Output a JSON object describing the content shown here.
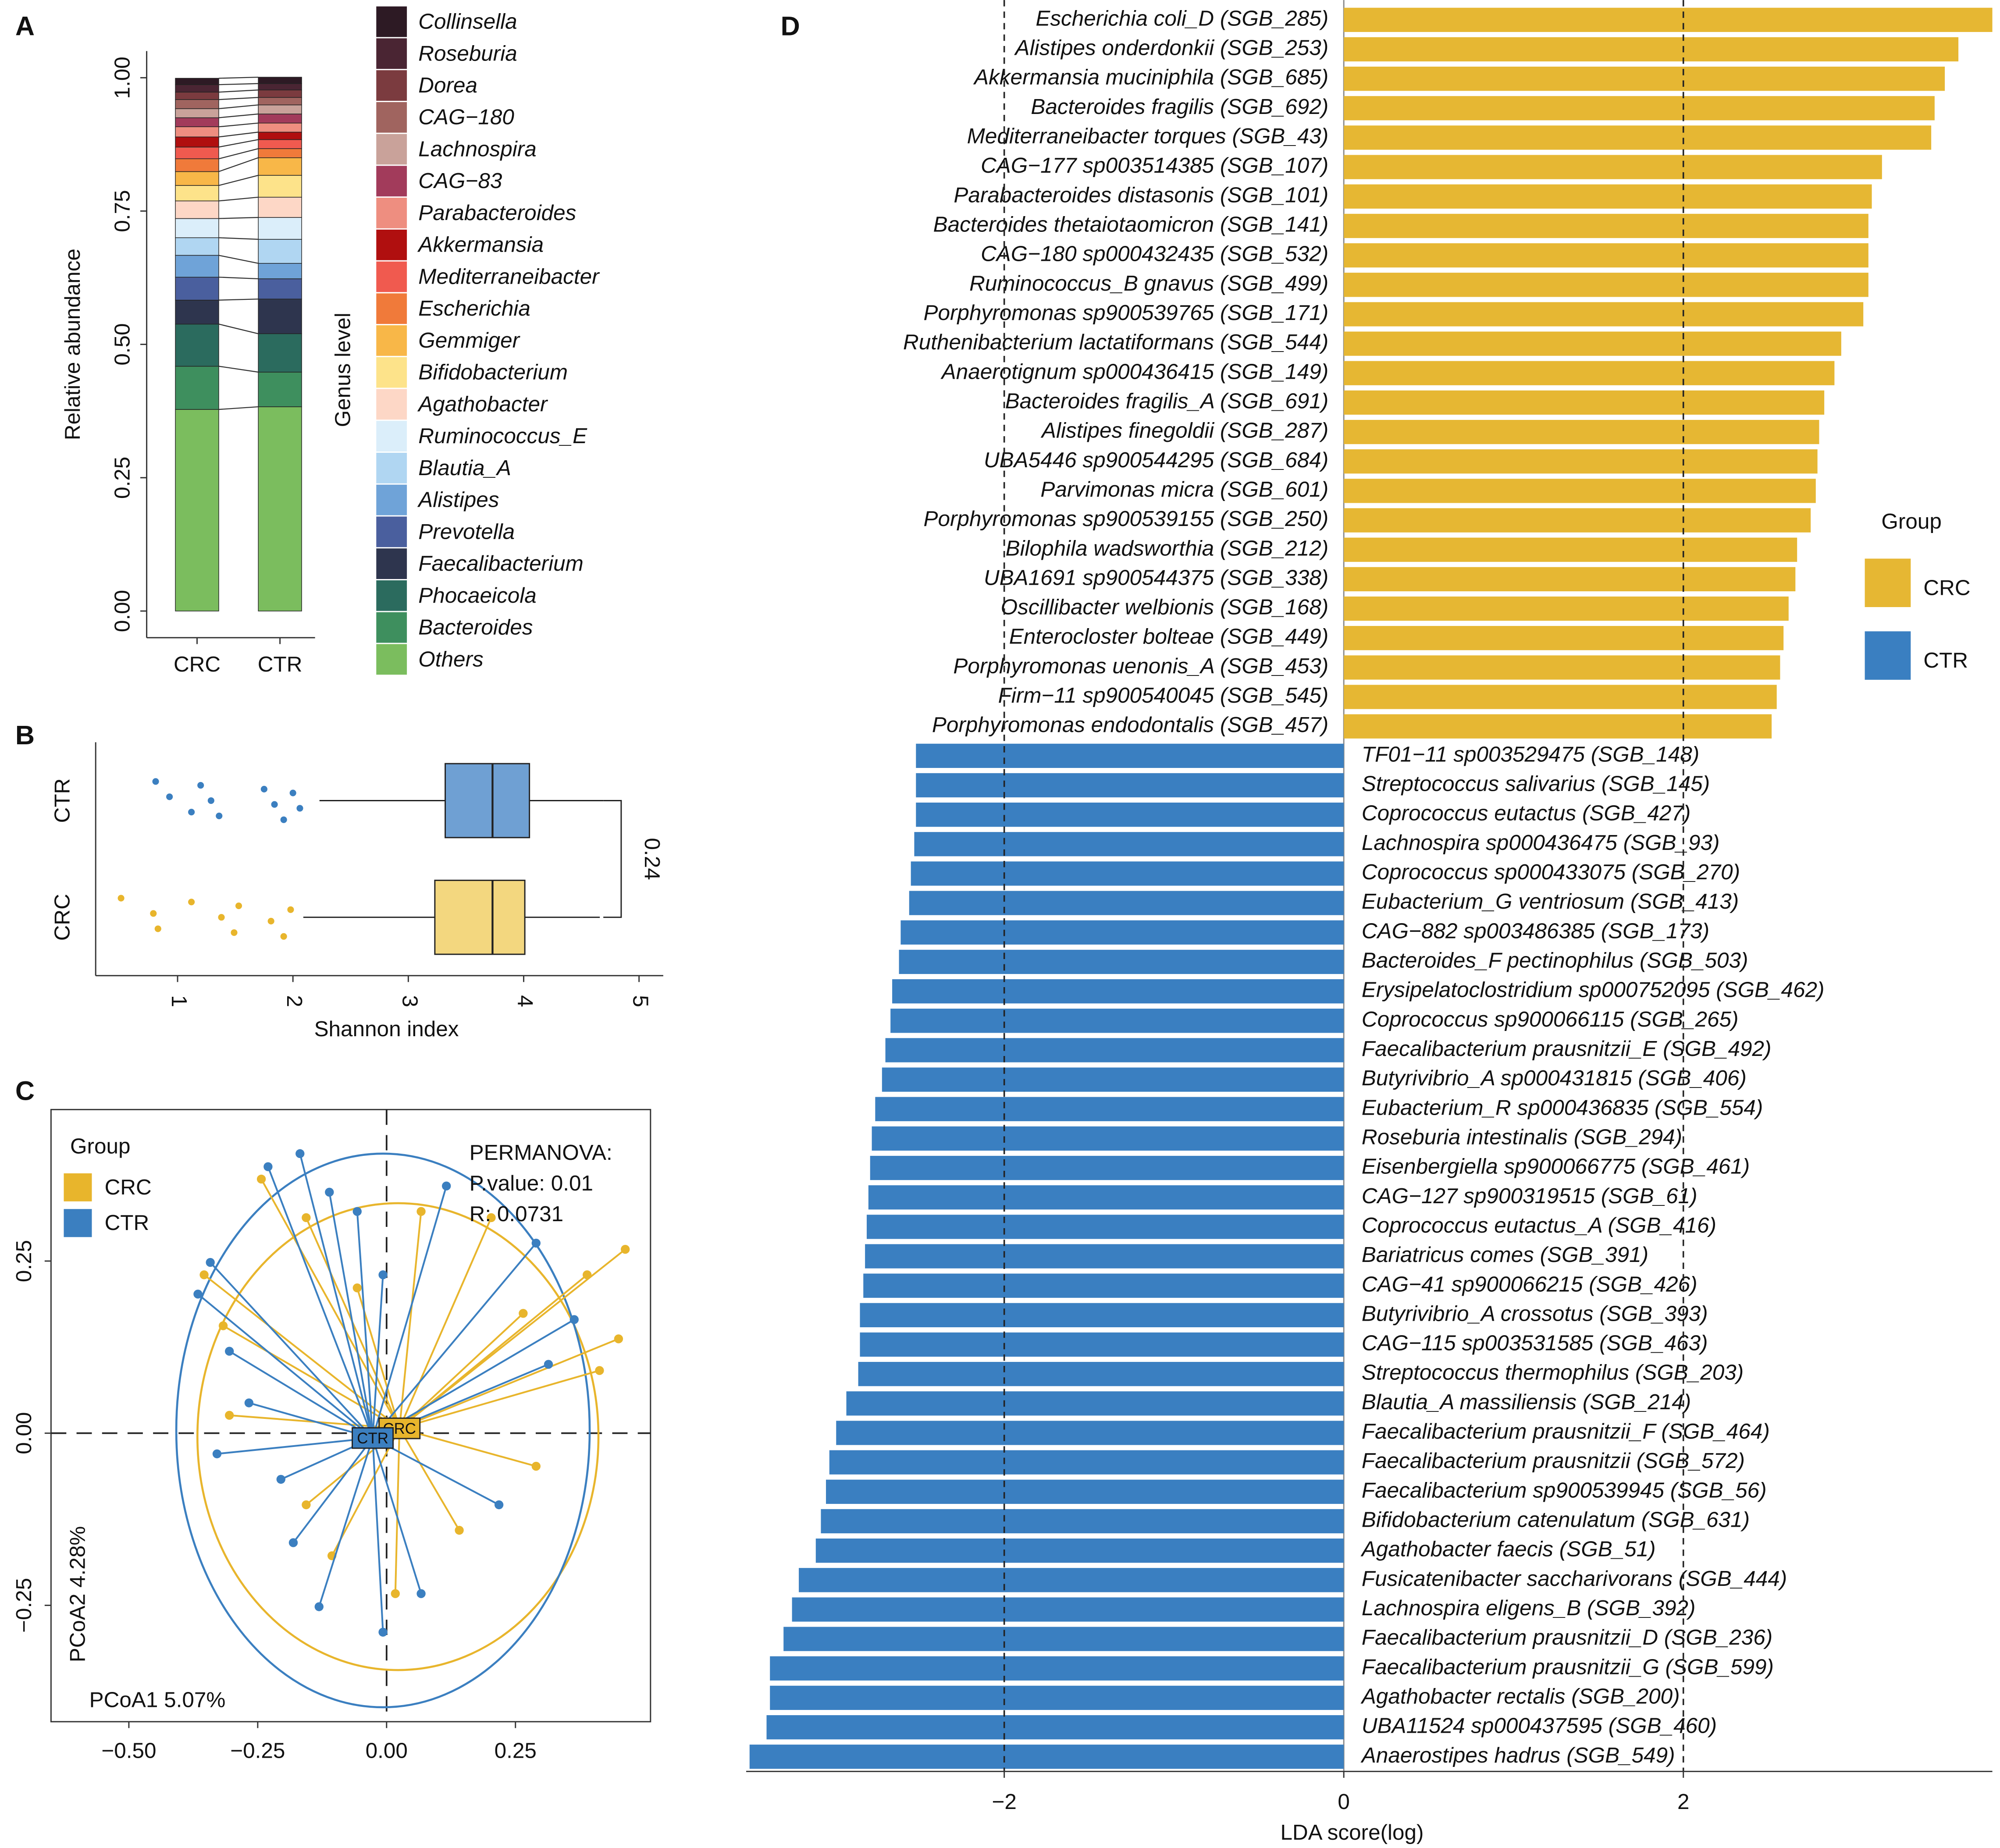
{
  "chart_data": [
    {
      "type": "bar",
      "panel": "A",
      "stacked": true,
      "ylabel": "Relative abundance",
      "legend_title": "Genus level",
      "categories": [
        "CRC",
        "CTR"
      ],
      "ylim": [
        -0.05,
        1.05
      ],
      "yticks": [
        {
          "value": 0,
          "label": "0.00"
        },
        {
          "value": 0.25,
          "label": "0.25"
        },
        {
          "value": 0.5,
          "label": "0.50"
        },
        {
          "value": 0.75,
          "label": "0.75"
        },
        {
          "value": 1,
          "label": "1.00"
        }
      ],
      "series": [
        {
          "name": "Collinsella",
          "color": "#2d1a24",
          "values": [
            0.012,
            0.012
          ]
        },
        {
          "name": "Roseburia",
          "color": "#4a2533",
          "values": [
            0.014,
            0.012
          ]
        },
        {
          "name": "Dorea",
          "color": "#7b3b3f",
          "values": [
            0.014,
            0.014
          ]
        },
        {
          "name": "CAG−180",
          "color": "#a0645f",
          "values": [
            0.017,
            0.014
          ]
        },
        {
          "name": "Lachnospira",
          "color": "#c9a29a",
          "values": [
            0.017,
            0.017
          ]
        },
        {
          "name": "CAG−83",
          "color": "#a23b5b",
          "values": [
            0.017,
            0.017
          ]
        },
        {
          "name": "Parabacteroides",
          "color": "#ee8e80",
          "values": [
            0.019,
            0.017
          ]
        },
        {
          "name": "Akkermansia",
          "color": "#b00f0f",
          "values": [
            0.019,
            0.014
          ]
        },
        {
          "name": "Mediterraneibacter",
          "color": "#f05a4f",
          "values": [
            0.022,
            0.017
          ]
        },
        {
          "name": "Escherichia",
          "color": "#f07a3a",
          "values": [
            0.024,
            0.017
          ]
        },
        {
          "name": "Gemmiger",
          "color": "#f8b748",
          "values": [
            0.026,
            0.033
          ]
        },
        {
          "name": "Bifidobacterium",
          "color": "#fde38a",
          "values": [
            0.029,
            0.041
          ]
        },
        {
          "name": "Agathobacter",
          "color": "#fdd7c6",
          "values": [
            0.033,
            0.038
          ]
        },
        {
          "name": "Ruminococcus_E",
          "color": "#dbeefa",
          "values": [
            0.036,
            0.041
          ]
        },
        {
          "name": "Blautia_A",
          "color": "#b0d6f2",
          "values": [
            0.033,
            0.045
          ]
        },
        {
          "name": "Alistipes",
          "color": "#6fa3d8",
          "values": [
            0.041,
            0.029
          ]
        },
        {
          "name": "Prevotella",
          "color": "#4a5f9e",
          "values": [
            0.043,
            0.038
          ]
        },
        {
          "name": "Faecalibacterium",
          "color": "#2e354e",
          "values": [
            0.045,
            0.065
          ]
        },
        {
          "name": "Phocaeicola",
          "color": "#2b6b5e",
          "values": [
            0.079,
            0.072
          ]
        },
        {
          "name": "Bacteroides",
          "color": "#3e8f5e",
          "values": [
            0.081,
            0.065
          ]
        },
        {
          "name": "Others",
          "color": "#7bbd5e",
          "values": [
            0.378,
            0.383
          ]
        }
      ]
    },
    {
      "type": "box",
      "panel": "B",
      "xlabel": "Shannon index",
      "xlim": [
        0.29,
        5.21
      ],
      "xticks": [
        1,
        2,
        3,
        4,
        5
      ],
      "annotation": "0.24",
      "series": [
        {
          "name": "CTR",
          "color": "#3b7fc0",
          "fill": "#6fa0d3",
          "q1": 3.32,
          "median": 3.73,
          "q3": 4.05,
          "whisker_low": 2.23,
          "whisker_high": 4.69,
          "outliers": [
            0.81,
            0.93,
            1.12,
            1.2,
            1.29,
            1.36,
            1.75,
            1.84,
            1.92,
            2.0,
            2.06
          ]
        },
        {
          "name": "CRC",
          "color": "#e8b52c",
          "fill": "#f3d77f",
          "q1": 3.23,
          "median": 3.73,
          "q3": 4.01,
          "whisker_low": 2.09,
          "whisker_high": 4.66,
          "outliers": [
            0.51,
            0.79,
            0.83,
            1.12,
            1.38,
            1.49,
            1.53,
            1.81,
            1.92,
            1.98
          ]
        }
      ]
    },
    {
      "type": "scatter",
      "panel": "C",
      "xlabel": "PCoA1 5.07%",
      "ylabel": "PCoA2 4.28%",
      "legend_title": "Group",
      "annotations": [
        "PERMANOVA:",
        "P.value: 0.01",
        "R: 0.0731"
      ],
      "xlim": [
        -0.651,
        0.512
      ],
      "ylim": [
        -0.419,
        0.47
      ],
      "xticks": [
        {
          "value": -0.5,
          "label": "−0.50"
        },
        {
          "value": -0.25,
          "label": "−0.25"
        },
        {
          "value": 0,
          "label": "0.00"
        },
        {
          "value": 0.25,
          "label": "0.25"
        }
      ],
      "yticks": [
        {
          "value": -0.25,
          "label": "−0.25"
        },
        {
          "value": 0,
          "label": "0.00"
        },
        {
          "value": 0.25,
          "label": "0.25"
        }
      ],
      "series": [
        {
          "name": "CRC",
          "color": "#e8b52c",
          "centroid": [
            0.025,
            0.007
          ],
          "ellipse": [
            0.022,
            -0.005,
            0.389,
            0.339
          ],
          "x": [
            -0.243,
            -0.156,
            -0.354,
            -0.317,
            0.067,
            0.203,
            0.463,
            0.45,
            0.413,
            0.389,
            -0.156,
            -0.106,
            0.017,
            0.141,
            0.29,
            -0.305,
            -0.057,
            0.265
          ],
          "y": [
            0.369,
            0.313,
            0.23,
            0.156,
            0.322,
            0.313,
            0.267,
            0.137,
            0.091,
            0.23,
            -0.104,
            -0.178,
            -0.233,
            -0.141,
            -0.048,
            0.026,
            0.211,
            0.174
          ]
        },
        {
          "name": "CTR",
          "color": "#3b7fc0",
          "centroid": [
            -0.027,
            -0.007
          ],
          "ellipse": [
            -0.007,
            0.004,
            0.401,
            0.402
          ],
          "x": [
            -0.168,
            -0.23,
            -0.111,
            -0.057,
            -0.342,
            -0.366,
            -0.305,
            -0.267,
            -0.007,
            0.116,
            0.29,
            0.364,
            0.314,
            -0.205,
            -0.181,
            -0.131,
            -0.007,
            0.067,
            0.218,
            -0.329
          ],
          "y": [
            0.406,
            0.387,
            0.35,
            0.322,
            0.248,
            0.202,
            0.119,
            0.044,
            0.23,
            0.359,
            0.276,
            0.165,
            0.1,
            -0.067,
            -0.159,
            -0.252,
            -0.289,
            -0.233,
            -0.104,
            -0.03
          ]
        }
      ]
    },
    {
      "type": "bar",
      "panel": "D",
      "orientation": "horizontal",
      "xlabel": "LDA score(log)",
      "legend_title": "Group",
      "xlim": [
        -3.52,
        3.82
      ],
      "xticks": [
        {
          "value": -2,
          "label": "−2"
        },
        0,
        2
      ],
      "reference_lines": [
        -2,
        2
      ],
      "categories": [
        "Escherichia coli_D (SGB_285)",
        "Alistipes onderdonkii (SGB_253)",
        "Akkermansia muciniphila (SGB_685)",
        "Bacteroides fragilis (SGB_692)",
        "Mediterraneibacter torques (SGB_43)",
        "CAG−177 sp003514385 (SGB_107)",
        "Parabacteroides distasonis (SGB_101)",
        "Bacteroides thetaiotaomicron (SGB_141)",
        "CAG−180 sp000432435 (SGB_532)",
        "Ruminococcus_B gnavus (SGB_499)",
        "Porphyromonas sp900539765 (SGB_171)",
        "Ruthenibacterium lactatiformans (SGB_544)",
        "Anaerotignum sp000436415 (SGB_149)",
        "Bacteroides fragilis_A (SGB_691)",
        "Alistipes finegoldii (SGB_287)",
        "UBA5446 sp900544295 (SGB_684)",
        "Parvimonas micra (SGB_601)",
        "Porphyromonas sp900539155 (SGB_250)",
        "Bilophila wadsworthia (SGB_212)",
        "UBA1691 sp900544375 (SGB_338)",
        "Oscillibacter welbionis (SGB_168)",
        "Enterocloster bolteae (SGB_449)",
        "Porphyromonas uenonis_A (SGB_453)",
        "Firm−11 sp900540045 (SGB_545)",
        "Porphyromonas endodontalis (SGB_457)",
        "TF01−11 sp003529475 (SGB_148)",
        "Streptococcus salivarius (SGB_145)",
        "Coprococcus eutactus (SGB_427)",
        "Lachnospira sp000436475 (SGB_93)",
        "Coprococcus sp000433075 (SGB_270)",
        "Eubacterium_G ventriosum (SGB_413)",
        "CAG−882 sp003486385 (SGB_173)",
        "Bacteroides_F pectinophilus (SGB_503)",
        "Erysipelatoclostridium sp000752095 (SGB_462)",
        "Coprococcus sp900066115 (SGB_265)",
        "Faecalibacterium prausnitzii_E (SGB_492)",
        "Butyrivibrio_A sp000431815 (SGB_406)",
        "Eubacterium_R sp000436835 (SGB_554)",
        "Roseburia intestinalis (SGB_294)",
        "Eisenbergiella sp900066775 (SGB_461)",
        "CAG−127 sp900319515 (SGB_61)",
        "Coprococcus eutactus_A (SGB_416)",
        "Bariatricus comes (SGB_391)",
        "CAG−41 sp900066215 (SGB_426)",
        "Butyrivibrio_A crossotus (SGB_393)",
        "CAG−115 sp003531585 (SGB_463)",
        "Streptococcus thermophilus (SGB_203)",
        "Blautia_A massiliensis (SGB_214)",
        "Faecalibacterium prausnitzii_F (SGB_464)",
        "Faecalibacterium prausnitzii (SGB_572)",
        "Faecalibacterium sp900539945 (SGB_56)",
        "Bifidobacterium catenulatum (SGB_631)",
        "Agathobacter faecis (SGB_51)",
        "Fusicatenibacter saccharivorans (SGB_444)",
        "Lachnospira eligens_B (SGB_392)",
        "Faecalibacterium prausnitzii_D (SGB_236)",
        "Faecalibacterium prausnitzii_G (SGB_599)",
        "Agathobacter rectalis (SGB_200)",
        "UBA11524 sp000437595 (SGB_460)",
        "Anaerostipes hadrus (SGB_549)"
      ],
      "series": [
        {
          "name": "CRC",
          "color": "#e6b733",
          "values": [
            3.82,
            3.62,
            3.54,
            3.48,
            3.46,
            3.17,
            3.11,
            3.09,
            3.09,
            3.09,
            3.06,
            2.93,
            2.89,
            2.83,
            2.8,
            2.79,
            2.78,
            2.75,
            2.67,
            2.66,
            2.62,
            2.59,
            2.57,
            2.55,
            2.52,
            null,
            null,
            null,
            null,
            null,
            null,
            null,
            null,
            null,
            null,
            null,
            null,
            null,
            null,
            null,
            null,
            null,
            null,
            null,
            null,
            null,
            null,
            null,
            null,
            null,
            null,
            null,
            null,
            null,
            null,
            null,
            null,
            null,
            null,
            null
          ]
        },
        {
          "name": "CTR",
          "color": "#3a7fc1",
          "values": [
            null,
            null,
            null,
            null,
            null,
            null,
            null,
            null,
            null,
            null,
            null,
            null,
            null,
            null,
            null,
            null,
            null,
            null,
            null,
            null,
            null,
            null,
            null,
            null,
            null,
            -2.52,
            -2.52,
            -2.52,
            -2.53,
            -2.55,
            -2.56,
            -2.61,
            -2.62,
            -2.66,
            -2.67,
            -2.7,
            -2.72,
            -2.76,
            -2.78,
            -2.79,
            -2.8,
            -2.81,
            -2.82,
            -2.83,
            -2.85,
            -2.85,
            -2.86,
            -2.93,
            -2.99,
            -3.03,
            -3.05,
            -3.08,
            -3.11,
            -3.21,
            -3.25,
            -3.3,
            -3.38,
            -3.38,
            -3.4,
            -3.5
          ]
        }
      ]
    }
  ]
}
